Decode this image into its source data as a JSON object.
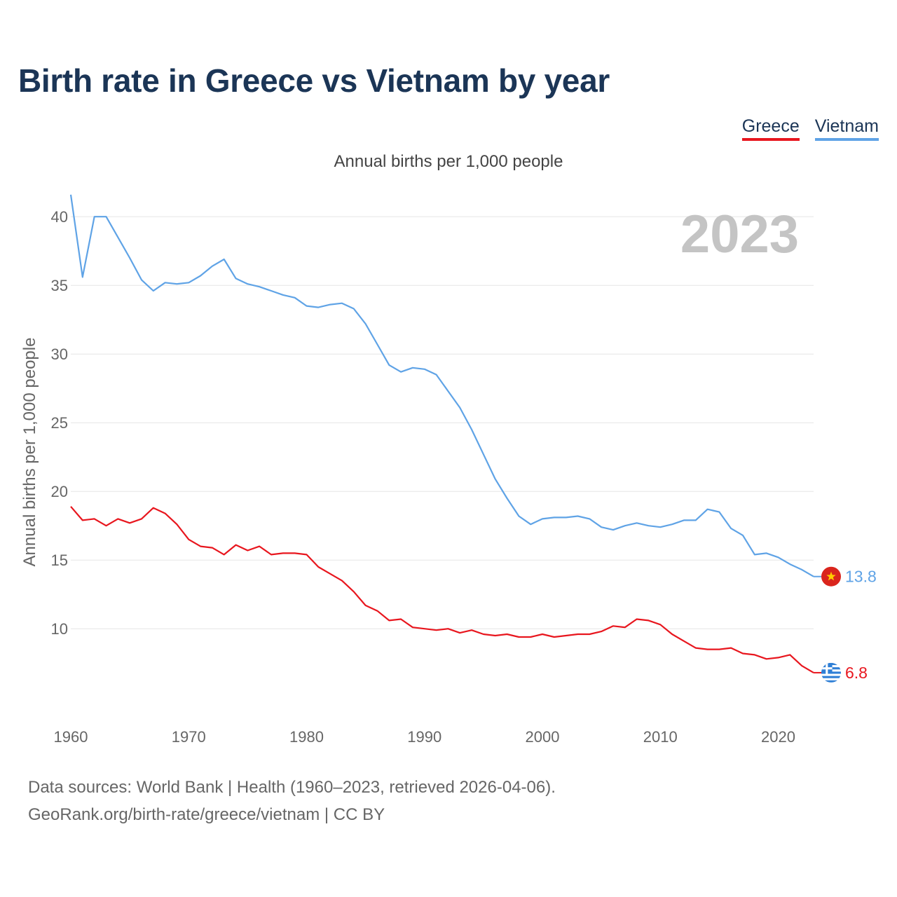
{
  "title": "Birth rate in Greece vs Vietnam by year",
  "legend": [
    {
      "name": "Greece",
      "color": "#e8161e"
    },
    {
      "name": "Vietnam",
      "color": "#5fa3e6"
    }
  ],
  "subtitle": "Annual births per 1,000 people",
  "source": {
    "line1": "Data sources: World Bank | Health (1960–2023, retrieved 2026-04-06).",
    "line2": "GeoRank.org/birth-rate/greece/vietnam | CC BY"
  },
  "chart_data": {
    "type": "line",
    "title": "Birth rate in Greece vs Vietnam by year",
    "ylabel": "Annual births per 1,000 people",
    "xlabel": "",
    "year_label": "2023",
    "xlim": [
      1960,
      2023
    ],
    "ylim": [
      4.5,
      42
    ],
    "x_ticks": [
      1960,
      1970,
      1980,
      1990,
      2000,
      2010,
      2020
    ],
    "y_ticks": [
      10,
      15,
      20,
      25,
      30,
      35,
      40
    ],
    "grid": true,
    "x": [
      1960,
      1961,
      1962,
      1963,
      1964,
      1965,
      1966,
      1967,
      1968,
      1969,
      1970,
      1971,
      1972,
      1973,
      1974,
      1975,
      1976,
      1977,
      1978,
      1979,
      1980,
      1981,
      1982,
      1983,
      1984,
      1985,
      1986,
      1987,
      1988,
      1989,
      1990,
      1991,
      1992,
      1993,
      1994,
      1995,
      1996,
      1997,
      1998,
      1999,
      2000,
      2001,
      2002,
      2003,
      2004,
      2005,
      2006,
      2007,
      2008,
      2009,
      2010,
      2011,
      2012,
      2013,
      2014,
      2015,
      2016,
      2017,
      2018,
      2019,
      2020,
      2021,
      2022,
      2023
    ],
    "series": [
      {
        "name": "Greece",
        "color": "#e8161e",
        "end_label": "6.8",
        "values": [
          18.9,
          17.9,
          18.0,
          17.5,
          18.0,
          17.7,
          18.0,
          18.8,
          18.4,
          17.6,
          16.5,
          16.0,
          15.9,
          15.4,
          16.1,
          15.7,
          16.0,
          15.4,
          15.5,
          15.5,
          15.4,
          14.5,
          14.0,
          13.5,
          12.7,
          11.7,
          11.3,
          10.6,
          10.7,
          10.1,
          10.0,
          9.9,
          10.0,
          9.7,
          9.9,
          9.6,
          9.5,
          9.6,
          9.4,
          9.4,
          9.6,
          9.4,
          9.5,
          9.6,
          9.6,
          9.8,
          10.2,
          10.1,
          10.7,
          10.6,
          10.3,
          9.6,
          9.1,
          8.6,
          8.5,
          8.5,
          8.6,
          8.2,
          8.1,
          7.8,
          7.9,
          8.1,
          7.3,
          6.8
        ]
      },
      {
        "name": "Vietnam",
        "color": "#5fa3e6",
        "end_label": "13.8",
        "values": [
          41.6,
          35.6,
          40.0,
          40.0,
          38.5,
          37.0,
          35.4,
          34.6,
          35.2,
          35.1,
          35.2,
          35.7,
          36.4,
          36.9,
          35.5,
          35.1,
          34.9,
          34.6,
          34.3,
          34.1,
          33.5,
          33.4,
          33.6,
          33.7,
          33.3,
          32.2,
          30.7,
          29.2,
          28.7,
          29.0,
          28.9,
          28.5,
          27.3,
          26.1,
          24.5,
          22.7,
          20.9,
          19.5,
          18.2,
          17.6,
          18.0,
          18.1,
          18.1,
          18.2,
          18.0,
          17.4,
          17.2,
          17.5,
          17.7,
          17.5,
          17.4,
          17.6,
          17.9,
          17.9,
          18.7,
          18.5,
          17.3,
          16.8,
          15.4,
          15.5,
          15.2,
          14.7,
          14.3,
          13.8
        ]
      }
    ]
  }
}
